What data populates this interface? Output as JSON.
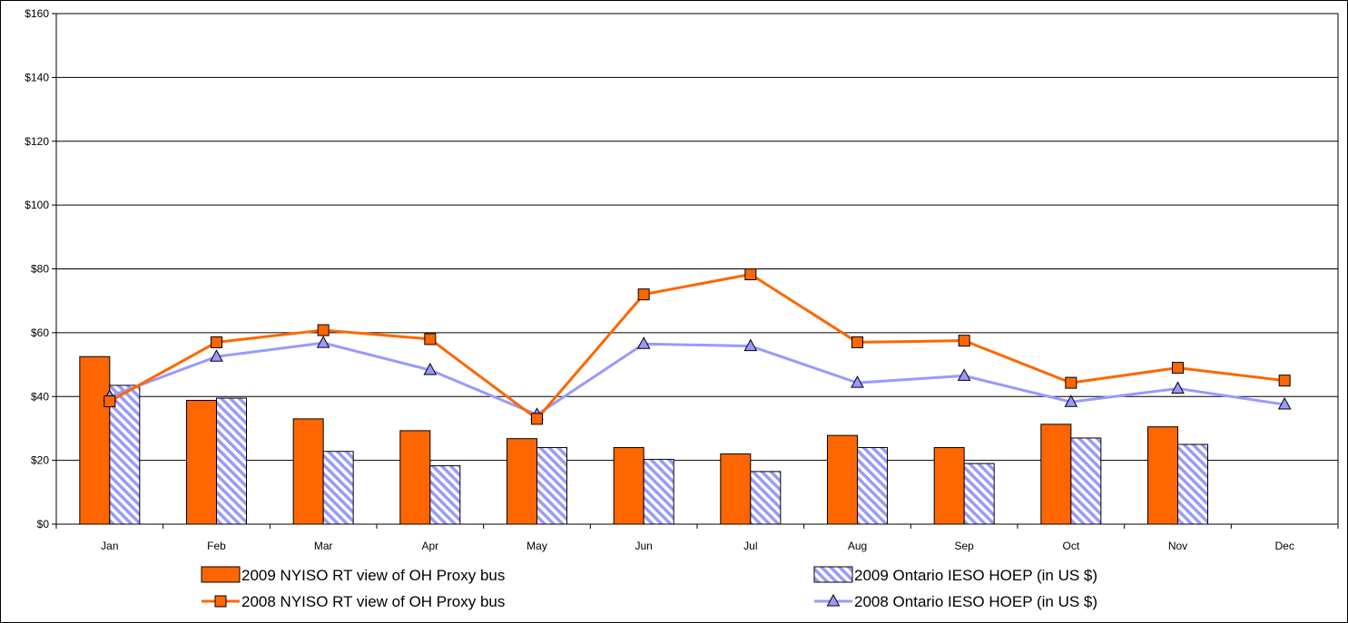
{
  "chart_data": {
    "type": "bar",
    "categories": [
      "Jan",
      "Feb",
      "Mar",
      "Apr",
      "May",
      "Jun",
      "Jul",
      "Aug",
      "Sep",
      "Oct",
      "Nov",
      "Dec"
    ],
    "ylim": [
      0,
      160
    ],
    "yticks": [
      0,
      20,
      40,
      60,
      80,
      100,
      120,
      140,
      160
    ],
    "ytick_labels": [
      "$0",
      "$20",
      "$40",
      "$60",
      "$80",
      "$100",
      "$120",
      "$140",
      "$160"
    ],
    "grid": true,
    "legend_position": "bottom",
    "series": [
      {
        "name": "2009 NYISO RT view of OH Proxy bus",
        "kind": "bar",
        "color": "#FF6600",
        "values": [
          52.5,
          38.8,
          33.0,
          29.3,
          26.8,
          24.0,
          22.0,
          27.8,
          24.0,
          31.3,
          30.5,
          null
        ]
      },
      {
        "name": "2009 Ontario IESO HOEP (in US $)",
        "kind": "bar",
        "color": "#9999FF",
        "pattern": "diagonal-hatch",
        "values": [
          43.5,
          39.5,
          22.8,
          18.3,
          24.0,
          20.3,
          16.5,
          24.0,
          19.0,
          27.0,
          25.0,
          null
        ]
      },
      {
        "name": "2008 NYISO RT view of OH Proxy bus",
        "kind": "line",
        "marker": "square",
        "color": "#FF6600",
        "values": [
          38.5,
          57.0,
          60.8,
          58.0,
          33.0,
          72.0,
          78.3,
          57.0,
          57.5,
          44.3,
          49.0,
          45.0
        ]
      },
      {
        "name": "2008 Ontario IESO HOEP (in US $)",
        "kind": "line",
        "marker": "triangle",
        "color": "#9999FF",
        "values": [
          40.0,
          52.5,
          56.8,
          48.3,
          34.3,
          56.5,
          55.8,
          44.3,
          46.5,
          38.3,
          42.5,
          37.5
        ]
      }
    ]
  }
}
